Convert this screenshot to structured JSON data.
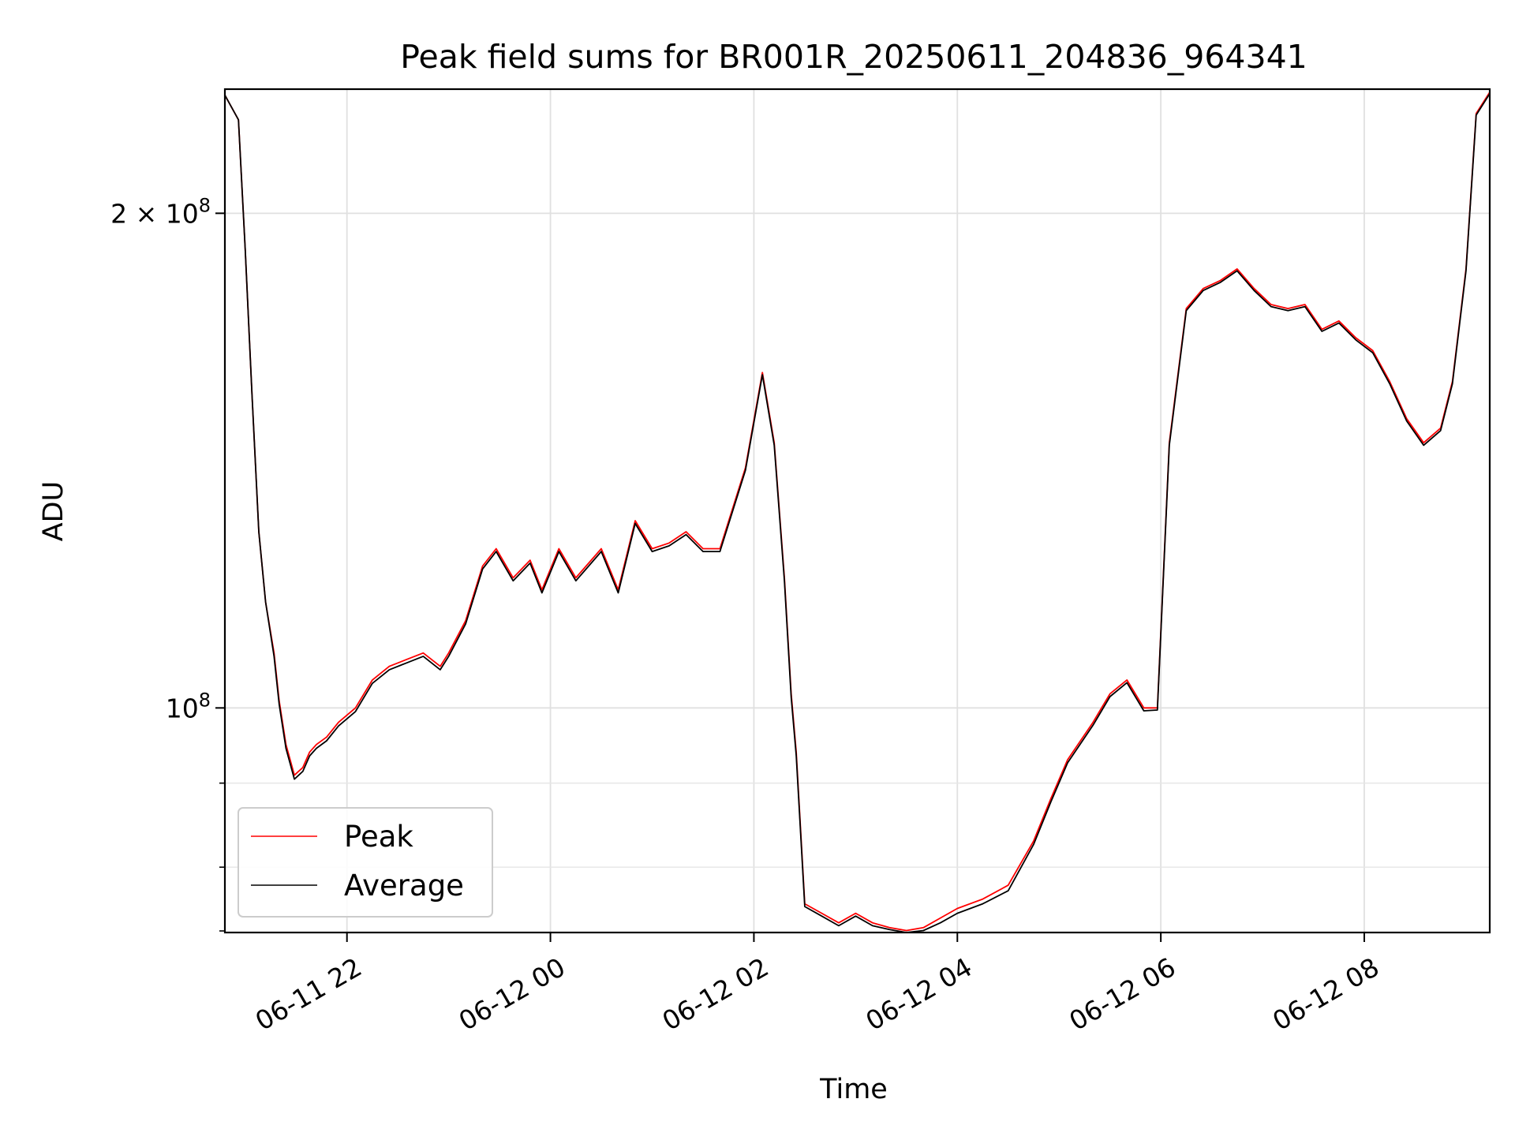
{
  "chart_data": {
    "type": "line",
    "title": "Peak field sums for BR001R_20250611_204836_964341",
    "xlabel": "Time",
    "ylabel": "ADU",
    "yscale": "log",
    "xlim": [
      "2025-06-11 20:48",
      "2025-06-12 09:14"
    ],
    "ylim": [
      73000000,
      238000000
    ],
    "x_ticks": [
      {
        "value": "2025-06-11 22:00",
        "label": "06-11 22"
      },
      {
        "value": "2025-06-12 00:00",
        "label": "06-12 00"
      },
      {
        "value": "2025-06-12 02:00",
        "label": "06-12 02"
      },
      {
        "value": "2025-06-12 04:00",
        "label": "06-12 04"
      },
      {
        "value": "2025-06-12 06:00",
        "label": "06-12 06"
      },
      {
        "value": "2025-06-12 08:00",
        "label": "06-12 08"
      }
    ],
    "y_ticks": [
      {
        "value": 100000000,
        "base": "10",
        "exp": "8"
      },
      {
        "value": 200000000,
        "mantissa": "2",
        "base": "10",
        "exp": "8"
      }
    ],
    "grid": true,
    "legend_position": "lower-left",
    "series": [
      {
        "name": "Peak",
        "color": "#ff0000",
        "x": [
          "2025-06-11 20:48",
          "2025-06-11 20:56",
          "2025-06-11 21:00",
          "2025-06-11 21:04",
          "2025-06-11 21:08",
          "2025-06-11 21:12",
          "2025-06-11 21:17",
          "2025-06-11 21:20",
          "2025-06-11 21:24",
          "2025-06-11 21:29",
          "2025-06-11 21:34",
          "2025-06-11 21:38",
          "2025-06-11 21:42",
          "2025-06-11 21:48",
          "2025-06-11 21:55",
          "2025-06-11 22:05",
          "2025-06-11 22:15",
          "2025-06-11 22:25",
          "2025-06-11 22:35",
          "2025-06-11 22:45",
          "2025-06-11 22:55",
          "2025-06-11 23:00",
          "2025-06-11 23:10",
          "2025-06-11 23:20",
          "2025-06-11 23:28",
          "2025-06-11 23:38",
          "2025-06-11 23:48",
          "2025-06-11 23:55",
          "2025-06-12 00:05",
          "2025-06-12 00:15",
          "2025-06-12 00:30",
          "2025-06-12 00:40",
          "2025-06-12 00:50",
          "2025-06-12 01:00",
          "2025-06-12 01:10",
          "2025-06-12 01:20",
          "2025-06-12 01:30",
          "2025-06-12 01:40",
          "2025-06-12 01:55",
          "2025-06-12 02:05",
          "2025-06-12 02:12",
          "2025-06-12 02:18",
          "2025-06-12 02:22",
          "2025-06-12 02:25",
          "2025-06-12 02:30",
          "2025-06-12 02:40",
          "2025-06-12 02:50",
          "2025-06-12 03:00",
          "2025-06-12 03:10",
          "2025-06-12 03:20",
          "2025-06-12 03:30",
          "2025-06-12 03:40",
          "2025-06-12 03:50",
          "2025-06-12 04:00",
          "2025-06-12 04:15",
          "2025-06-12 04:30",
          "2025-06-12 04:45",
          "2025-06-12 04:55",
          "2025-06-12 05:05",
          "2025-06-12 05:20",
          "2025-06-12 05:30",
          "2025-06-12 05:40",
          "2025-06-12 05:50",
          "2025-06-12 05:58",
          "2025-06-12 06:05",
          "2025-06-12 06:15",
          "2025-06-12 06:25",
          "2025-06-12 06:35",
          "2025-06-12 06:45",
          "2025-06-12 06:55",
          "2025-06-12 07:05",
          "2025-06-12 07:15",
          "2025-06-12 07:25",
          "2025-06-12 07:35",
          "2025-06-12 07:45",
          "2025-06-12 07:55",
          "2025-06-12 08:05",
          "2025-06-12 08:15",
          "2025-06-12 08:25",
          "2025-06-12 08:35",
          "2025-06-12 08:45",
          "2025-06-12 08:52",
          "2025-06-12 09:00",
          "2025-06-12 09:06",
          "2025-06-12 09:14"
        ],
        "y": [
          236000000,
          228000000,
          190000000,
          155000000,
          128000000,
          116000000,
          108000000,
          101000000,
          95000000,
          91000000,
          92000000,
          94000000,
          95000000,
          96000000,
          98000000,
          100000000,
          104000000,
          106000000,
          107000000,
          108000000,
          106000000,
          108000000,
          113000000,
          122000000,
          125000000,
          120000000,
          123000000,
          118000000,
          125000000,
          120000000,
          125000000,
          118000000,
          130000000,
          125000000,
          126000000,
          128000000,
          125000000,
          125000000,
          140000000,
          160000000,
          145000000,
          120000000,
          102000000,
          94000000,
          76000000,
          75000000,
          74000000,
          75000000,
          74000000,
          73500000,
          73200000,
          73500000,
          74500000,
          75500000,
          76500000,
          78000000,
          83000000,
          88000000,
          93000000,
          98000000,
          102000000,
          104000000,
          100000000,
          100000000,
          145000000,
          175000000,
          180000000,
          182000000,
          185000000,
          180000000,
          176000000,
          175000000,
          176000000,
          170000000,
          172000000,
          168000000,
          165000000,
          158000000,
          150000000,
          145000000,
          148000000,
          158000000,
          185000000,
          230000000,
          237000000
        ]
      },
      {
        "name": "Average",
        "color": "#000000",
        "x": [
          "2025-06-11 20:48",
          "2025-06-11 20:56",
          "2025-06-11 21:00",
          "2025-06-11 21:04",
          "2025-06-11 21:08",
          "2025-06-11 21:12",
          "2025-06-11 21:17",
          "2025-06-11 21:20",
          "2025-06-11 21:24",
          "2025-06-11 21:29",
          "2025-06-11 21:34",
          "2025-06-11 21:38",
          "2025-06-11 21:42",
          "2025-06-11 21:48",
          "2025-06-11 21:55",
          "2025-06-11 22:05",
          "2025-06-11 22:15",
          "2025-06-11 22:25",
          "2025-06-11 22:35",
          "2025-06-11 22:45",
          "2025-06-11 22:55",
          "2025-06-11 23:00",
          "2025-06-11 23:10",
          "2025-06-11 23:20",
          "2025-06-11 23:28",
          "2025-06-11 23:38",
          "2025-06-11 23:48",
          "2025-06-11 23:55",
          "2025-06-12 00:05",
          "2025-06-12 00:15",
          "2025-06-12 00:30",
          "2025-06-12 00:40",
          "2025-06-12 00:50",
          "2025-06-12 01:00",
          "2025-06-12 01:10",
          "2025-06-12 01:20",
          "2025-06-12 01:30",
          "2025-06-12 01:40",
          "2025-06-12 01:55",
          "2025-06-12 02:05",
          "2025-06-12 02:12",
          "2025-06-12 02:18",
          "2025-06-12 02:22",
          "2025-06-12 02:25",
          "2025-06-12 02:30",
          "2025-06-12 02:40",
          "2025-06-12 02:50",
          "2025-06-12 03:00",
          "2025-06-12 03:10",
          "2025-06-12 03:20",
          "2025-06-12 03:30",
          "2025-06-12 03:40",
          "2025-06-12 03:50",
          "2025-06-12 04:00",
          "2025-06-12 04:15",
          "2025-06-12 04:30",
          "2025-06-12 04:45",
          "2025-06-12 04:55",
          "2025-06-12 05:05",
          "2025-06-12 05:20",
          "2025-06-12 05:30",
          "2025-06-12 05:40",
          "2025-06-12 05:50",
          "2025-06-12 05:58",
          "2025-06-12 06:05",
          "2025-06-12 06:15",
          "2025-06-12 06:25",
          "2025-06-12 06:35",
          "2025-06-12 06:45",
          "2025-06-12 06:55",
          "2025-06-12 07:05",
          "2025-06-12 07:15",
          "2025-06-12 07:25",
          "2025-06-12 07:35",
          "2025-06-12 07:45",
          "2025-06-12 07:55",
          "2025-06-12 08:05",
          "2025-06-12 08:15",
          "2025-06-12 08:25",
          "2025-06-12 08:35",
          "2025-06-12 08:45",
          "2025-06-12 08:52",
          "2025-06-12 09:00",
          "2025-06-12 09:06",
          "2025-06-12 09:14"
        ],
        "y": [
          236000000,
          228000000,
          190000000,
          155000000,
          128000000,
          116000000,
          107500000,
          100500000,
          94500000,
          90500000,
          91500000,
          93500000,
          94500000,
          95500000,
          97500000,
          99500000,
          103500000,
          105500000,
          106500000,
          107500000,
          105500000,
          107500000,
          112500000,
          121500000,
          124500000,
          119500000,
          122500000,
          117500000,
          124500000,
          119500000,
          124500000,
          117500000,
          129500000,
          124500000,
          125500000,
          127500000,
          124500000,
          124500000,
          139500000,
          159500000,
          144500000,
          119500000,
          101500000,
          93500000,
          75700000,
          74700000,
          73700000,
          74700000,
          73700000,
          73300000,
          73000000,
          73200000,
          74000000,
          75000000,
          76000000,
          77400000,
          82600000,
          87600000,
          92600000,
          97600000,
          101600000,
          103600000,
          99600000,
          99700000,
          144500000,
          174500000,
          179500000,
          181500000,
          184500000,
          179500000,
          175500000,
          174500000,
          175500000,
          169500000,
          171500000,
          167500000,
          164500000,
          157500000,
          149500000,
          144500000,
          147500000,
          157500000,
          184500000,
          229500000,
          236500000
        ]
      }
    ]
  }
}
